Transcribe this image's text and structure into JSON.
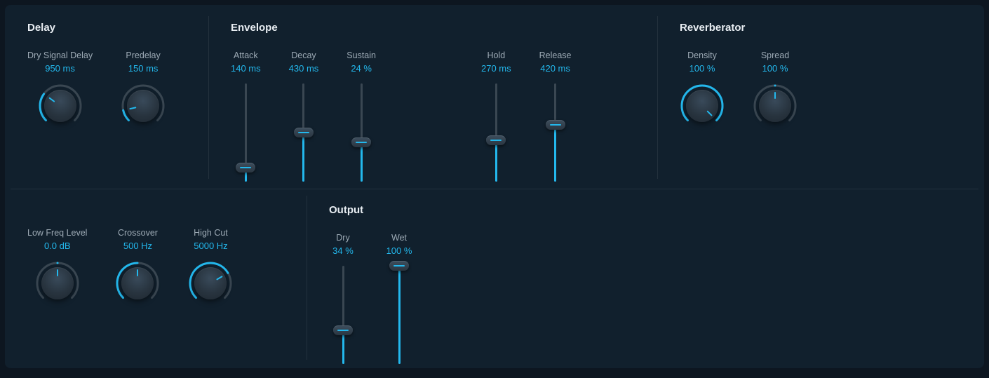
{
  "colors": {
    "bg": "#11202d",
    "accent": "#23b8ed",
    "label": "#9daab5",
    "title": "#e8edf2",
    "trackOff": "#3a4752",
    "divider": "#23313d"
  },
  "knob": {
    "arcStartDeg": -225,
    "arcEndDeg": 45,
    "radius": 29,
    "strokeWidth": 3
  },
  "slider": {
    "trackHeight": 140
  },
  "sections": {
    "delay": {
      "title": "Delay",
      "controls": [
        {
          "name": "dry-signal-delay",
          "label": "Dry Signal Delay",
          "value": "950 ms",
          "type": "knob",
          "fraction": 0.3,
          "bipolar": false
        },
        {
          "name": "predelay",
          "label": "Predelay",
          "value": "150 ms",
          "type": "knob",
          "fraction": 0.12,
          "bipolar": false
        }
      ]
    },
    "envelope": {
      "title": "Envelope",
      "controls": [
        {
          "name": "attack",
          "label": "Attack",
          "value": "140 ms",
          "type": "slider",
          "fraction": 0.14
        },
        {
          "name": "decay",
          "label": "Decay",
          "value": "430 ms",
          "type": "slider",
          "fraction": 0.5
        },
        {
          "name": "sustain",
          "label": "Sustain",
          "value": "24 %",
          "type": "slider",
          "fraction": 0.4
        },
        {
          "name": "hold",
          "label": "Hold",
          "value": "270 ms",
          "type": "slider",
          "fraction": 0.42
        },
        {
          "name": "release",
          "label": "Release",
          "value": "420 ms",
          "type": "slider",
          "fraction": 0.58
        }
      ]
    },
    "reverberator": {
      "title": "Reverberator",
      "controls": [
        {
          "name": "density",
          "label": "Density",
          "value": "100 %",
          "type": "knob",
          "fraction": 1.0,
          "bipolar": false
        },
        {
          "name": "spread",
          "label": "Spread",
          "value": "100 %",
          "type": "knob",
          "fraction": 0.5,
          "bipolar": true
        }
      ]
    },
    "filters": {
      "title": "",
      "controls": [
        {
          "name": "low-freq-level",
          "label": "Low Freq Level",
          "value": "0.0 dB",
          "type": "knob",
          "fraction": 0.5,
          "bipolar": true
        },
        {
          "name": "crossover",
          "label": "Crossover",
          "value": "500 Hz",
          "type": "knob",
          "fraction": 0.5,
          "bipolar": false
        },
        {
          "name": "high-cut",
          "label": "High Cut",
          "value": "5000 Hz",
          "type": "knob",
          "fraction": 0.72,
          "bipolar": false
        }
      ]
    },
    "output": {
      "title": "Output",
      "controls": [
        {
          "name": "dry",
          "label": "Dry",
          "value": "34 %",
          "type": "slider",
          "fraction": 0.34
        },
        {
          "name": "wet",
          "label": "Wet",
          "value": "100 %",
          "type": "slider",
          "fraction": 1.0
        }
      ]
    }
  }
}
